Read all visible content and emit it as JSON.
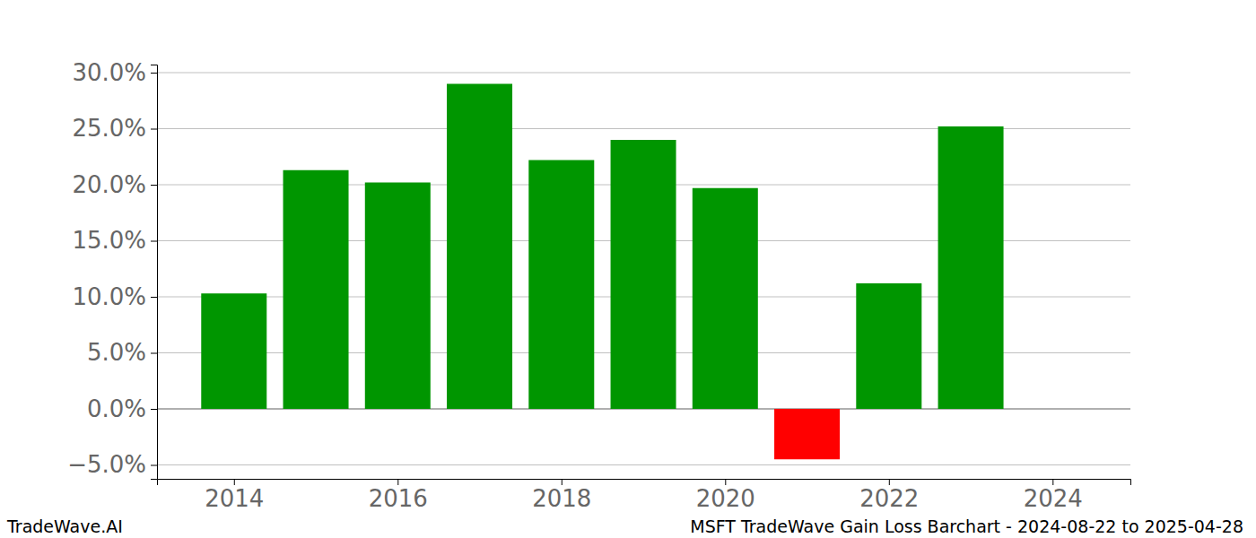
{
  "chart_data": {
    "type": "bar",
    "title": "MSFT TradeWave Gain Loss Barchart - 2024-08-22 to 2025-04-28",
    "annotations": [
      "TradeWave.AI"
    ],
    "x": [
      2014,
      2015,
      2016,
      2017,
      2018,
      2019,
      2020,
      2021,
      2022,
      2023
    ],
    "values": [
      10.3,
      21.3,
      20.2,
      29.0,
      22.2,
      24.0,
      19.7,
      -4.5,
      11.2,
      25.2
    ],
    "colors": [
      "#009600",
      "#009600",
      "#009600",
      "#009600",
      "#009600",
      "#009600",
      "#009600",
      "#ff0000",
      "#009600",
      "#009600"
    ],
    "xlim": [
      2013.06,
      2024.95
    ],
    "xticks": [
      2014,
      2016,
      2018,
      2020,
      2022,
      2024
    ],
    "ylim": [
      -6.24,
      30.72
    ],
    "yticks": [
      {
        "value": -5,
        "label": "−5.0%"
      },
      {
        "value": 0,
        "label": "0.0%"
      },
      {
        "value": 5,
        "label": "5.0%"
      },
      {
        "value": 10,
        "label": "10.0%"
      },
      {
        "value": 15,
        "label": "15.0%"
      },
      {
        "value": 20,
        "label": "20.0%"
      },
      {
        "value": 25,
        "label": "25.0%"
      },
      {
        "value": 30,
        "label": "30.0%"
      }
    ],
    "grid": true
  }
}
